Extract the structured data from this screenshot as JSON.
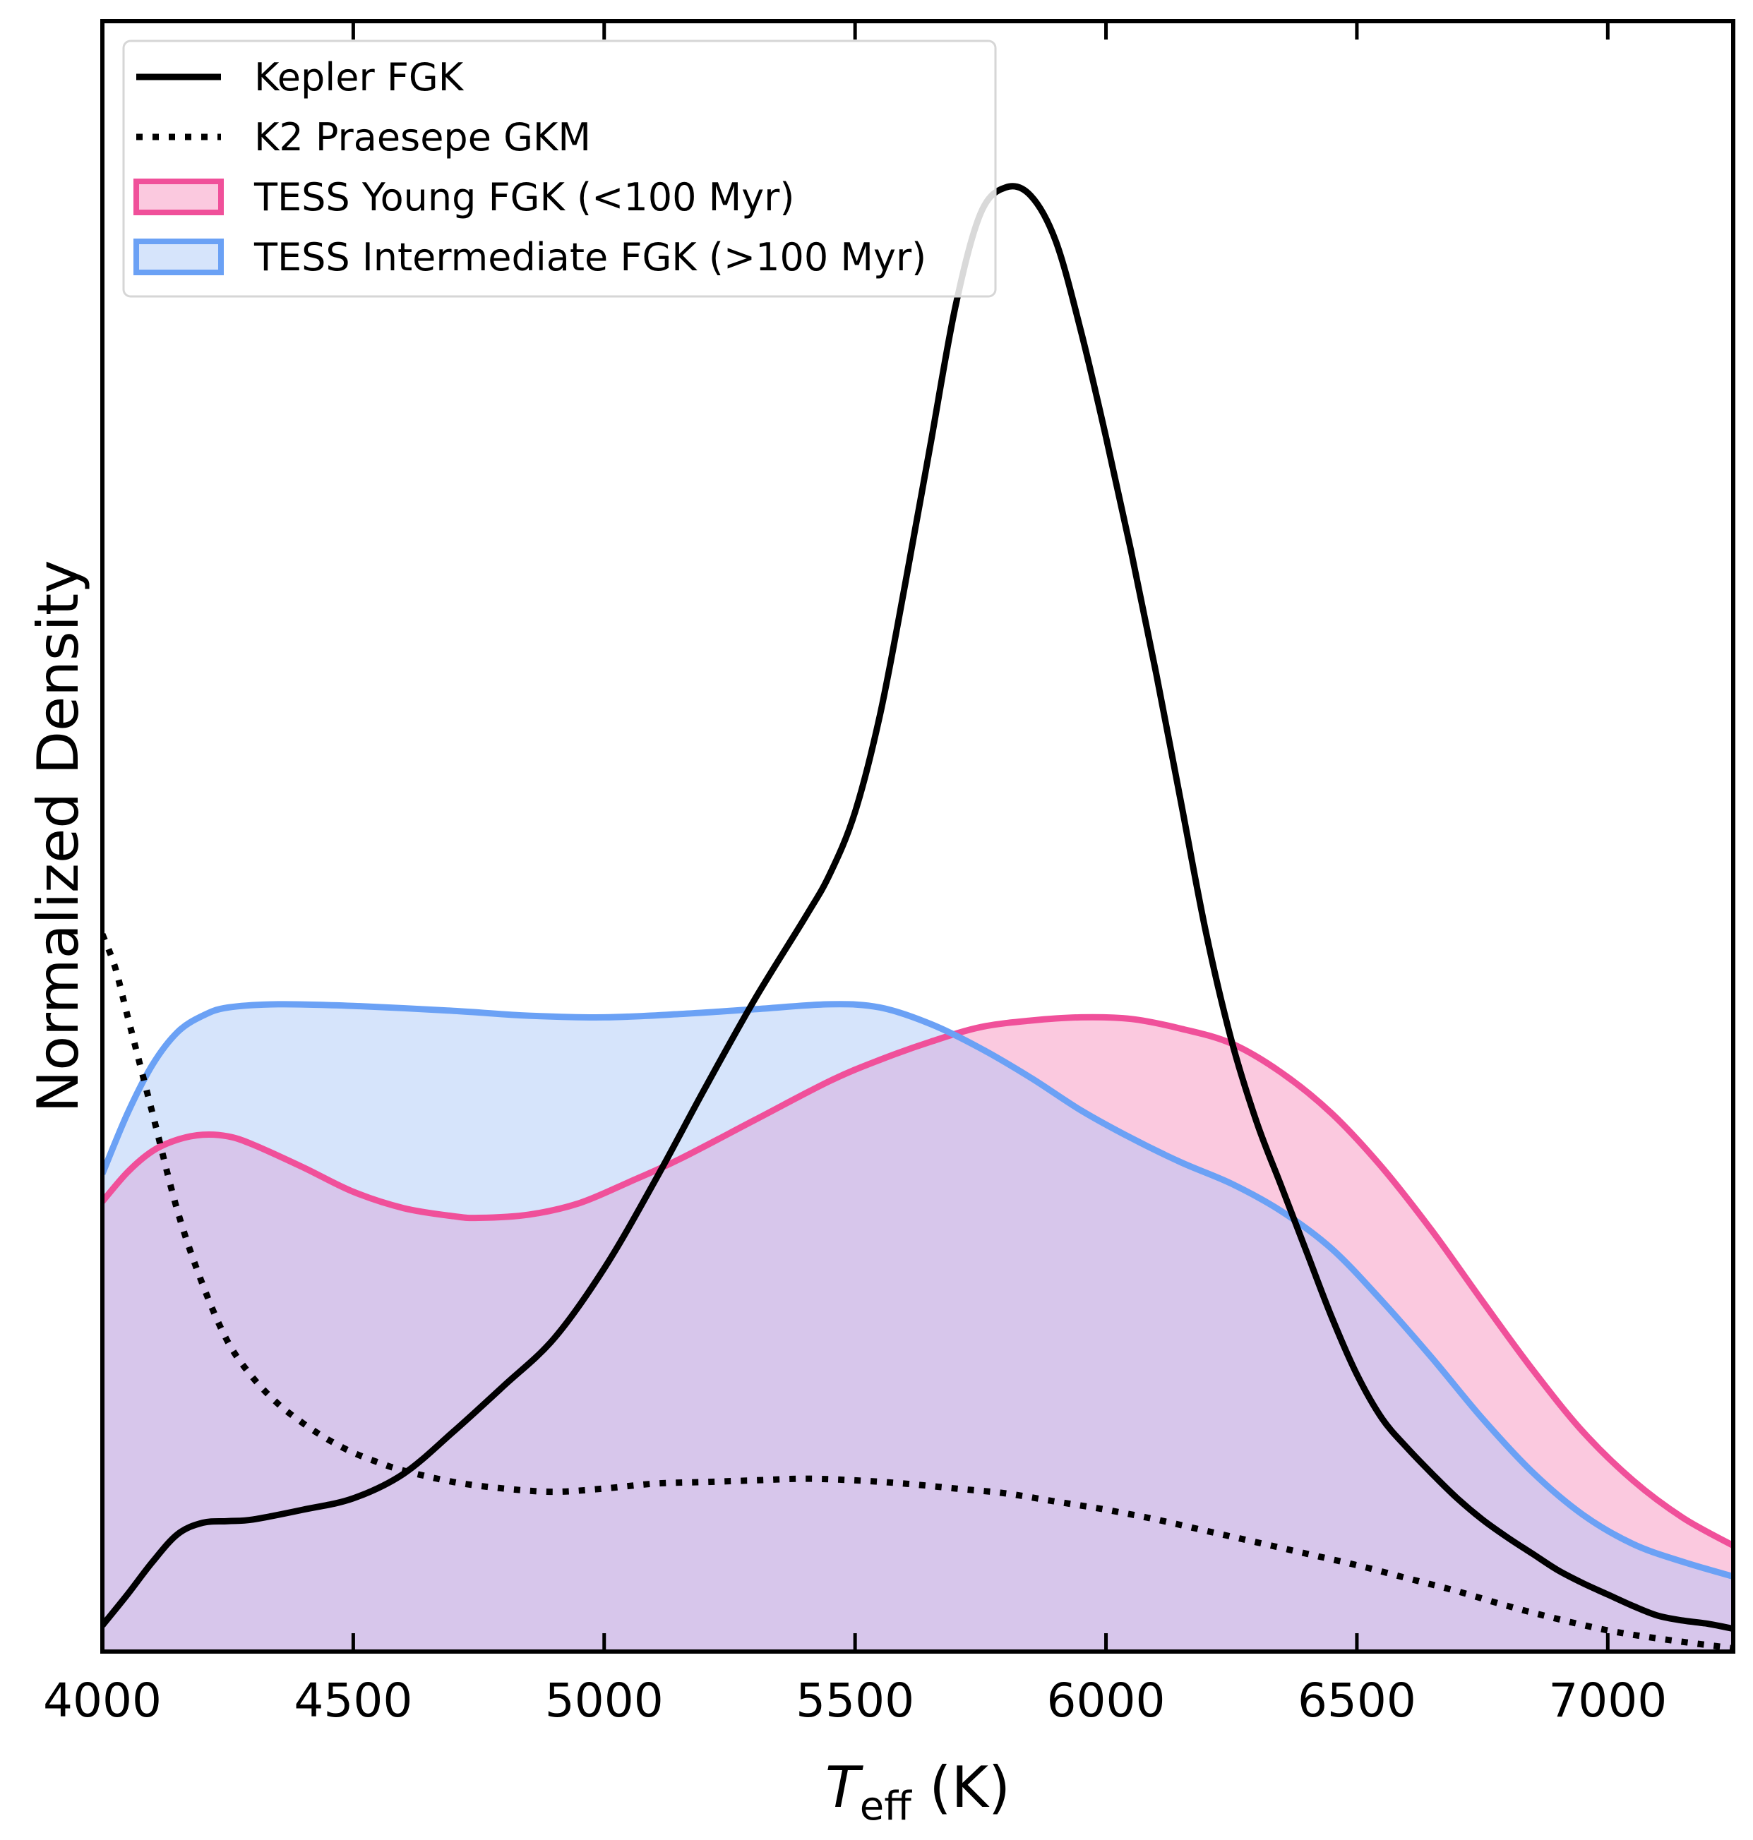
{
  "chart_data": {
    "type": "area",
    "xlabel": "T",
    "xlabel_sub": "eff",
    "xlabel_unit": " (K)",
    "ylabel": "Normalized Density",
    "xlim": [
      4000,
      7250
    ],
    "ylim": [
      0,
      1.0
    ],
    "xticks": [
      4000,
      4500,
      5000,
      5500,
      6000,
      6500,
      7000
    ],
    "yticks_shown": false,
    "tick_direction": "in",
    "grid": false,
    "legend_position": "top-left",
    "series": [
      {
        "name": "TESS Young FGK (<100 Myr)",
        "style": "filled",
        "stroke": "#f0509a",
        "fill": "#fbc9df",
        "points": [
          [
            4000,
            0.276
          ],
          [
            4050,
            0.294
          ],
          [
            4100,
            0.307
          ],
          [
            4150,
            0.314
          ],
          [
            4200,
            0.317
          ],
          [
            4250,
            0.316
          ],
          [
            4300,
            0.311
          ],
          [
            4400,
            0.297
          ],
          [
            4500,
            0.282
          ],
          [
            4600,
            0.272
          ],
          [
            4700,
            0.267
          ],
          [
            4750,
            0.266
          ],
          [
            4850,
            0.268
          ],
          [
            4950,
            0.275
          ],
          [
            5050,
            0.288
          ],
          [
            5150,
            0.302
          ],
          [
            5300,
            0.326
          ],
          [
            5450,
            0.35
          ],
          [
            5550,
            0.363
          ],
          [
            5650,
            0.374
          ],
          [
            5750,
            0.383
          ],
          [
            5850,
            0.387
          ],
          [
            5950,
            0.389
          ],
          [
            6050,
            0.388
          ],
          [
            6150,
            0.382
          ],
          [
            6250,
            0.373
          ],
          [
            6350,
            0.355
          ],
          [
            6450,
            0.33
          ],
          [
            6550,
            0.297
          ],
          [
            6650,
            0.258
          ],
          [
            6750,
            0.215
          ],
          [
            6850,
            0.173
          ],
          [
            6950,
            0.135
          ],
          [
            7050,
            0.105
          ],
          [
            7150,
            0.082
          ],
          [
            7250,
            0.065
          ]
        ]
      },
      {
        "name": "TESS Intermediate FGK (>100 Myr)",
        "style": "filled",
        "stroke": "#6ba1f5",
        "fill": "#d6e4fb",
        "points": [
          [
            4000,
            0.293
          ],
          [
            4050,
            0.33
          ],
          [
            4100,
            0.36
          ],
          [
            4150,
            0.38
          ],
          [
            4200,
            0.39
          ],
          [
            4250,
            0.395
          ],
          [
            4350,
            0.397
          ],
          [
            4500,
            0.396
          ],
          [
            4700,
            0.393
          ],
          [
            4850,
            0.39
          ],
          [
            5000,
            0.389
          ],
          [
            5150,
            0.391
          ],
          [
            5300,
            0.394
          ],
          [
            5450,
            0.397
          ],
          [
            5550,
            0.395
          ],
          [
            5650,
            0.385
          ],
          [
            5750,
            0.37
          ],
          [
            5850,
            0.352
          ],
          [
            5950,
            0.332
          ],
          [
            6050,
            0.315
          ],
          [
            6150,
            0.3
          ],
          [
            6250,
            0.287
          ],
          [
            6350,
            0.27
          ],
          [
            6450,
            0.247
          ],
          [
            6550,
            0.215
          ],
          [
            6650,
            0.18
          ],
          [
            6750,
            0.143
          ],
          [
            6850,
            0.11
          ],
          [
            6950,
            0.084
          ],
          [
            7050,
            0.066
          ],
          [
            7150,
            0.055
          ],
          [
            7250,
            0.046
          ]
        ]
      },
      {
        "name": "Kepler FGK",
        "style": "solid",
        "stroke": "#000000",
        "points": [
          [
            4000,
            0.016
          ],
          [
            4050,
            0.035
          ],
          [
            4100,
            0.055
          ],
          [
            4150,
            0.072
          ],
          [
            4200,
            0.079
          ],
          [
            4250,
            0.08
          ],
          [
            4300,
            0.081
          ],
          [
            4400,
            0.087
          ],
          [
            4500,
            0.094
          ],
          [
            4600,
            0.109
          ],
          [
            4700,
            0.135
          ],
          [
            4800,
            0.163
          ],
          [
            4900,
            0.192
          ],
          [
            5000,
            0.235
          ],
          [
            5100,
            0.288
          ],
          [
            5200,
            0.345
          ],
          [
            5300,
            0.4
          ],
          [
            5400,
            0.45
          ],
          [
            5450,
            0.477
          ],
          [
            5500,
            0.515
          ],
          [
            5550,
            0.575
          ],
          [
            5600,
            0.655
          ],
          [
            5650,
            0.74
          ],
          [
            5700,
            0.825
          ],
          [
            5750,
            0.882
          ],
          [
            5800,
            0.898
          ],
          [
            5850,
            0.893
          ],
          [
            5900,
            0.865
          ],
          [
            5950,
            0.81
          ],
          [
            6000,
            0.745
          ],
          [
            6050,
            0.675
          ],
          [
            6100,
            0.6
          ],
          [
            6150,
            0.52
          ],
          [
            6200,
            0.44
          ],
          [
            6250,
            0.375
          ],
          [
            6300,
            0.325
          ],
          [
            6350,
            0.285
          ],
          [
            6400,
            0.245
          ],
          [
            6450,
            0.205
          ],
          [
            6500,
            0.17
          ],
          [
            6550,
            0.143
          ],
          [
            6600,
            0.125
          ],
          [
            6650,
            0.109
          ],
          [
            6700,
            0.094
          ],
          [
            6750,
            0.081
          ],
          [
            6800,
            0.07
          ],
          [
            6850,
            0.06
          ],
          [
            6900,
            0.05
          ],
          [
            6950,
            0.042
          ],
          [
            7000,
            0.035
          ],
          [
            7050,
            0.028
          ],
          [
            7100,
            0.022
          ],
          [
            7150,
            0.019
          ],
          [
            7200,
            0.017
          ],
          [
            7250,
            0.014
          ]
        ]
      },
      {
        "name": "K2 Praesepe GKM",
        "style": "dotted",
        "stroke": "#000000",
        "points": [
          [
            4000,
            0.44
          ],
          [
            4025,
            0.42
          ],
          [
            4050,
            0.39
          ],
          [
            4100,
            0.33
          ],
          [
            4150,
            0.27
          ],
          [
            4200,
            0.225
          ],
          [
            4250,
            0.19
          ],
          [
            4300,
            0.168
          ],
          [
            4350,
            0.152
          ],
          [
            4400,
            0.14
          ],
          [
            4450,
            0.13
          ],
          [
            4500,
            0.122
          ],
          [
            4550,
            0.116
          ],
          [
            4600,
            0.111
          ],
          [
            4700,
            0.104
          ],
          [
            4800,
            0.1
          ],
          [
            4900,
            0.098
          ],
          [
            5000,
            0.1
          ],
          [
            5100,
            0.103
          ],
          [
            5200,
            0.104
          ],
          [
            5300,
            0.105
          ],
          [
            5400,
            0.106
          ],
          [
            5500,
            0.105
          ],
          [
            5600,
            0.103
          ],
          [
            5700,
            0.1
          ],
          [
            5800,
            0.097
          ],
          [
            5900,
            0.092
          ],
          [
            6000,
            0.087
          ],
          [
            6100,
            0.081
          ],
          [
            6200,
            0.074
          ],
          [
            6300,
            0.067
          ],
          [
            6400,
            0.06
          ],
          [
            6500,
            0.053
          ],
          [
            6600,
            0.045
          ],
          [
            6700,
            0.037
          ],
          [
            6800,
            0.028
          ],
          [
            6900,
            0.02
          ],
          [
            7000,
            0.013
          ],
          [
            7100,
            0.008
          ],
          [
            7250,
            0.002
          ]
        ]
      }
    ],
    "legend": [
      {
        "label": "Kepler FGK",
        "style": "solid"
      },
      {
        "label": "K2 Praesepe GKM",
        "style": "dotted"
      },
      {
        "label": "TESS Young FGK (<100 Myr)",
        "style": "patch",
        "stroke": "#f0509a",
        "fill": "#fbc9df"
      },
      {
        "label": "TESS Intermediate FGK (>100 Myr)",
        "style": "patch",
        "stroke": "#6ba1f5",
        "fill": "#d6e4fb"
      }
    ],
    "overlap_fill": "#d7c6eb"
  }
}
